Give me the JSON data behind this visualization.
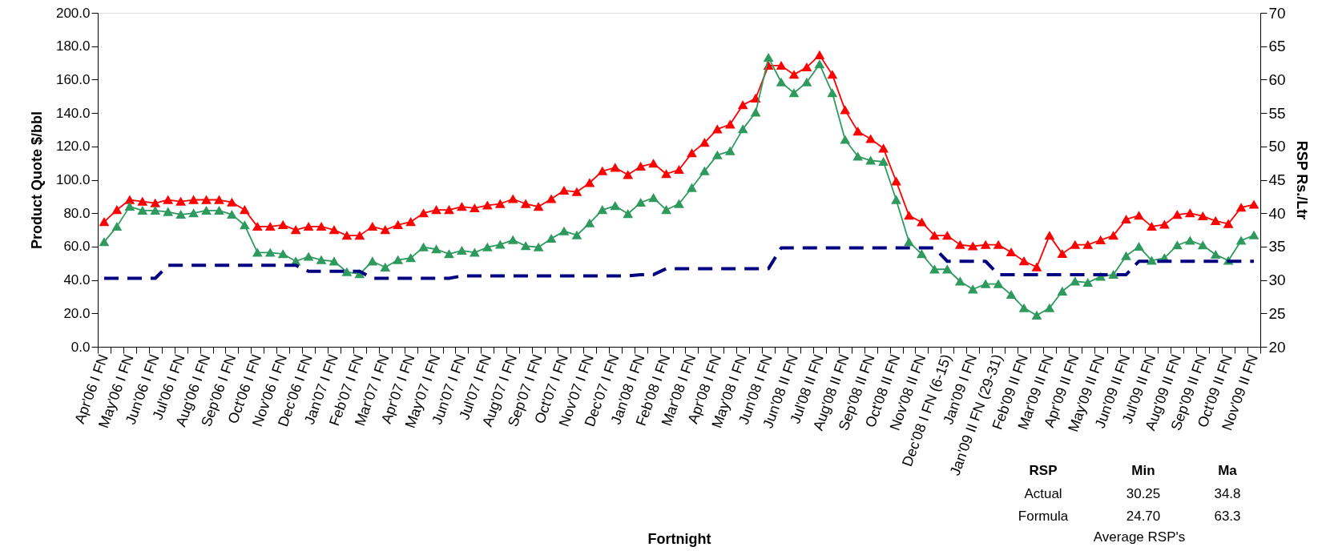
{
  "chart_data": {
    "type": "line",
    "xlabel": "Fortnight",
    "ylabel": "Product Quote $/bbl",
    "y2label": "RSP Rs./Ltr",
    "categories": [
      "Apr'06 I FN",
      null,
      "May'06 I FN",
      null,
      "Jun'06 I FN",
      null,
      "Jul'06 I FN",
      null,
      "Aug'06 I FN",
      null,
      "Sep'06 I FN",
      null,
      "Oct'06 I FN",
      null,
      "Nov'06 I FN",
      null,
      "Dec'06 I FN",
      null,
      "Jan'07 I FN",
      null,
      "Feb'07 I FN",
      null,
      "Mar'07 I FN",
      null,
      "Apr'07 I FN",
      null,
      "May'07 I FN",
      null,
      "Jun'07 I FN",
      null,
      "Jul'07 I FN",
      null,
      "Aug'07 I FN",
      null,
      "Sep'07 I FN",
      null,
      "Oct'07 I FN",
      null,
      "Nov'07 I FN",
      null,
      "Dec'07 I FN",
      null,
      "Jan'08 I FN",
      null,
      "Feb'08 I FN",
      null,
      "Mar'08 I FN",
      null,
      "Apr'08 I FN",
      null,
      "May'08 I FN",
      null,
      "Jun'08 I FN",
      null,
      "Jun'08 II FN",
      null,
      "Jul'08 II FN",
      null,
      "Aug'08 II FN",
      null,
      "Sep'08 II FN",
      null,
      "Oct'08 II FN",
      null,
      "Nov'08 II FN",
      null,
      "Dec'08 I FN (6-15)",
      null,
      "Jan'09 I FN",
      null,
      "Jan'09 II FN (29-31)",
      null,
      "Feb'09 II FN",
      null,
      "Mar'09 II FN",
      null,
      "Apr'09 II FN",
      null,
      "May'09 II FN",
      null,
      "Jun'09 II FN",
      null,
      "Jul'09 II FN",
      null,
      "Aug'09 II FN",
      null,
      "Sep'09 II FN",
      null,
      "Oct'09 II FN",
      null,
      "Nov'09 II FN"
    ],
    "series": [
      {
        "color": "#ff0000",
        "marker": "triangle",
        "line_style": "solid",
        "values": [
          74.8,
          82,
          88,
          87,
          86,
          88,
          87,
          88,
          88,
          88,
          86.5,
          82,
          72,
          72,
          73,
          70,
          72,
          72,
          70,
          66.6,
          66.6,
          72,
          70,
          73,
          74.8,
          80,
          82,
          82,
          83.9,
          83,
          84.7,
          85.6,
          88.5,
          85.6,
          83.9,
          88.5,
          93.6,
          92.7,
          98.2,
          105.2,
          107.3,
          103,
          108,
          109.8,
          103.5,
          106,
          116,
          122.3,
          130.3,
          133.2,
          144.8,
          148.8,
          168.4,
          168.4,
          163,
          167.4,
          174.7,
          163,
          141.8,
          129,
          124.5,
          118.8,
          99.1,
          78.6,
          74.6,
          66.6,
          66.6,
          61.1,
          60.2,
          61.1,
          61.1,
          56.6,
          51.3,
          47.7,
          66.6,
          55.7,
          61.1,
          61.1,
          63.9,
          66.6,
          76.3,
          78.6,
          72,
          73.2,
          79.1,
          80,
          78.2,
          75.4,
          73.6,
          83.4,
          85.2
        ]
      },
      {
        "color": "#2e9a5e",
        "marker": "triangle",
        "line_style": "solid",
        "axis": "y2",
        "values": [
          35.7,
          38.0,
          41.0,
          40.4,
          40.4,
          40.2,
          39.8,
          40.0,
          40.4,
          40.4,
          39.8,
          38.2,
          34.1,
          34.1,
          33.9,
          32.8,
          33.5,
          33.0,
          32.8,
          31.2,
          30.9,
          32.8,
          31.9,
          33.0,
          33.3,
          34.9,
          34.6,
          33.9,
          34.4,
          34.1,
          34.9,
          35.3,
          36.0,
          35.1,
          34.9,
          36.2,
          37.3,
          36.7,
          38.5,
          40.5,
          41.1,
          39.9,
          41.6,
          42.3,
          40.5,
          41.4,
          43.8,
          46.3,
          48.7,
          49.3,
          52.6,
          55.1,
          63.3,
          59.6,
          58.0,
          59.6,
          62.3,
          58.0,
          51.0,
          48.5,
          47.9,
          47.7,
          42.0,
          35.7,
          33.9,
          31.6,
          31.6,
          29.8,
          28.6,
          29.4,
          29.4,
          27.8,
          25.8,
          24.7,
          25.8,
          28.3,
          29.8,
          29.6,
          30.5,
          30.8,
          33.6,
          35.0,
          32.9,
          33.3,
          35.2,
          35.9,
          35.2,
          33.8,
          32.9,
          35.9,
          36.7
        ]
      },
      {
        "color": "#000080",
        "marker": "none",
        "line_style": "dashed",
        "axis": "y2",
        "values": [
          30.25,
          30.25,
          30.25,
          30.25,
          30.25,
          32.2,
          32.2,
          32.2,
          32.2,
          32.2,
          32.2,
          32.2,
          32.2,
          32.2,
          32.2,
          32.2,
          31.3,
          31.3,
          31.3,
          31.3,
          31.3,
          30.25,
          30.25,
          30.25,
          30.25,
          30.25,
          30.25,
          30.25,
          30.6,
          30.6,
          30.6,
          30.6,
          30.6,
          30.6,
          30.6,
          30.6,
          30.6,
          30.6,
          30.6,
          30.6,
          30.6,
          30.6,
          30.8,
          30.8,
          31.7,
          31.7,
          31.7,
          31.7,
          31.7,
          31.7,
          31.7,
          31.7,
          31.7,
          34.8,
          34.8,
          34.8,
          34.8,
          34.8,
          34.8,
          34.8,
          34.8,
          34.8,
          34.8,
          34.8,
          34.8,
          34.8,
          32.8,
          32.8,
          32.8,
          32.8,
          30.8,
          30.8,
          30.8,
          30.8,
          30.8,
          30.8,
          30.8,
          30.8,
          30.8,
          30.8,
          30.8,
          32.8,
          32.8,
          32.8,
          32.8,
          32.8,
          32.8,
          32.8,
          32.8,
          32.8,
          32.8
        ]
      }
    ],
    "ylim": [
      0,
      200
    ],
    "yticks": [
      {
        "value": 0,
        "label": "0.0"
      },
      {
        "value": 20,
        "label": "20.0"
      },
      {
        "value": 40,
        "label": "40.0"
      },
      {
        "value": 60,
        "label": "60.0"
      },
      {
        "value": 80,
        "label": "80.0"
      },
      {
        "value": 100,
        "label": "100.0"
      },
      {
        "value": 120,
        "label": "120.0"
      },
      {
        "value": 140,
        "label": "140.0"
      },
      {
        "value": 160,
        "label": "160.0"
      },
      {
        "value": 180,
        "label": "180.0"
      },
      {
        "value": 200,
        "label": "200.0"
      }
    ],
    "y2lim": [
      20,
      70
    ],
    "y2ticks": [
      20,
      25,
      30,
      35,
      40,
      45,
      50,
      55,
      60,
      65,
      70
    ],
    "grid": false,
    "annotations": [
      "RSP",
      "Min",
      "Ma",
      "Actual",
      "30.25",
      "34.8",
      "Formula",
      "24.70",
      "63.3",
      "Average RSP's"
    ]
  }
}
